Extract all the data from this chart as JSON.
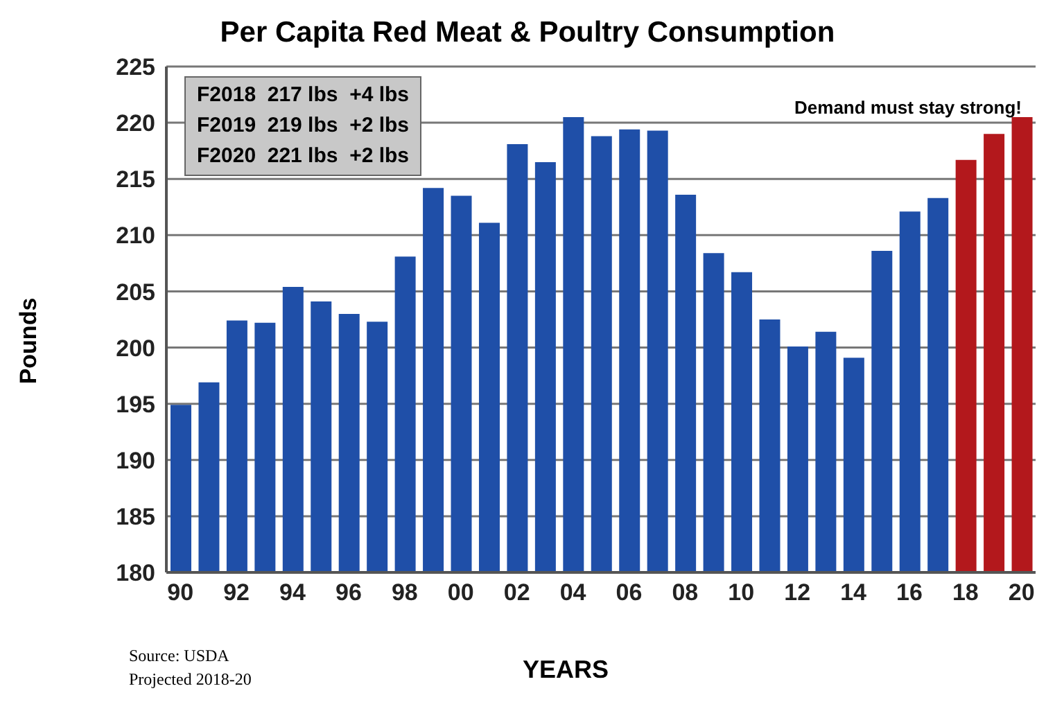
{
  "chart_data": {
    "type": "bar",
    "title": "Per Capita Red Meat & Poultry Consumption",
    "xlabel": "YEARS",
    "ylabel": "Pounds",
    "categories": [
      "90",
      null,
      "92",
      null,
      "94",
      null,
      "96",
      null,
      "98",
      null,
      "00",
      null,
      "02",
      null,
      "04",
      null,
      "06",
      null,
      "08",
      null,
      "10",
      null,
      "12",
      null,
      "14",
      null,
      "16",
      null,
      "18",
      null,
      "20"
    ],
    "values": [
      194.9,
      196.9,
      202.4,
      202.2,
      205.4,
      204.1,
      203.0,
      202.3,
      208.1,
      214.2,
      213.5,
      211.1,
      218.1,
      216.5,
      220.5,
      218.8,
      219.4,
      219.3,
      213.6,
      208.4,
      206.7,
      202.5,
      200.1,
      201.4,
      199.1,
      208.6,
      212.1,
      213.3,
      216.7,
      219.0,
      220.5
    ],
    "colors": [
      "#1f4fa8",
      "#1f4fa8",
      "#1f4fa8",
      "#1f4fa8",
      "#1f4fa8",
      "#1f4fa8",
      "#1f4fa8",
      "#1f4fa8",
      "#1f4fa8",
      "#1f4fa8",
      "#1f4fa8",
      "#1f4fa8",
      "#1f4fa8",
      "#1f4fa8",
      "#1f4fa8",
      "#1f4fa8",
      "#1f4fa8",
      "#1f4fa8",
      "#1f4fa8",
      "#1f4fa8",
      "#1f4fa8",
      "#1f4fa8",
      "#1f4fa8",
      "#1f4fa8",
      "#1f4fa8",
      "#1f4fa8",
      "#1f4fa8",
      "#1f4fa8",
      "#b3181c",
      "#b3181c",
      "#b3181c"
    ],
    "ylim": [
      180,
      225
    ],
    "yticks": [
      180,
      185,
      190,
      195,
      200,
      205,
      210,
      215,
      220,
      225
    ],
    "grid": "y",
    "annotations": [
      "F2018  217 lbs  +4 lbs",
      "F2019  219 lbs  +2 lbs",
      "F2020  221 lbs  +2 lbs",
      "Demand must stay strong!",
      "Source: USDA",
      "Projected 2018-20"
    ]
  }
}
